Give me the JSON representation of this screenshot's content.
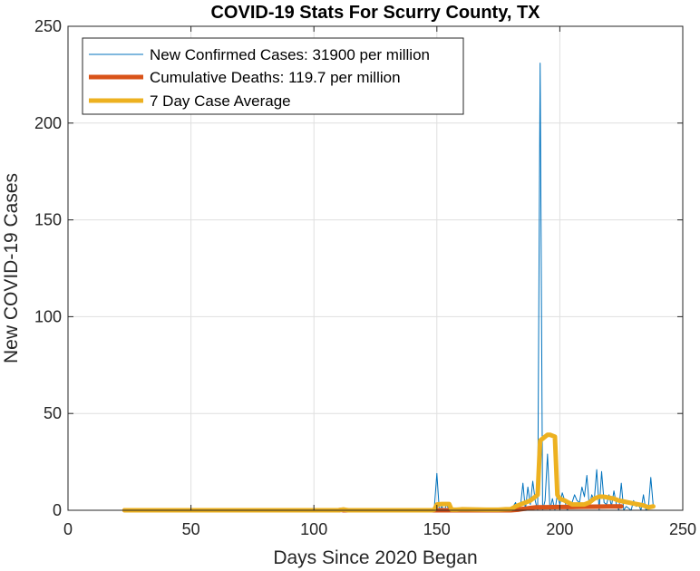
{
  "chart_data": {
    "type": "line",
    "title": "COVID-19 Stats For Scurry County, TX",
    "xlabel": "Days Since 2020 Began",
    "ylabel": "New COVID-19 Cases",
    "xlim": [
      0,
      250
    ],
    "ylim": [
      0,
      250
    ],
    "xticks": [
      0,
      50,
      100,
      150,
      200,
      250
    ],
    "yticks": [
      0,
      50,
      100,
      150,
      200,
      250
    ],
    "grid": true,
    "legend_position": "top-left",
    "series": [
      {
        "name": "New Confirmed Cases: 31900 per million",
        "color": "#0072bd",
        "x": [
          23,
          100,
          110,
          111,
          112,
          113,
          148,
          149,
          150,
          151,
          152,
          153,
          154,
          155,
          156,
          158,
          160,
          165,
          170,
          175,
          180,
          182,
          183,
          184,
          185,
          186,
          187,
          188,
          189,
          190,
          191,
          192,
          193,
          194,
          195,
          196,
          197,
          198,
          199,
          200,
          201,
          202,
          203,
          204,
          205,
          206,
          207,
          208,
          209,
          210,
          211,
          212,
          213,
          214,
          215,
          216,
          217,
          218,
          219,
          220,
          221,
          222,
          223,
          224,
          225,
          226,
          227,
          228,
          229,
          230,
          231,
          232,
          233,
          234,
          235,
          236,
          237,
          238
        ],
        "y": [
          0,
          0,
          0,
          1,
          0,
          0,
          0,
          2,
          19,
          0,
          2,
          0,
          3,
          0,
          0,
          0,
          0,
          0,
          0,
          0,
          0,
          4,
          0,
          2,
          14,
          0,
          12,
          3,
          15,
          5,
          0,
          231,
          0,
          5,
          29,
          0,
          6,
          0,
          8,
          3,
          9,
          5,
          0,
          2,
          4,
          8,
          5,
          4,
          12,
          7,
          18,
          2,
          8,
          5,
          21,
          0,
          20,
          4,
          3,
          8,
          2,
          10,
          3,
          0,
          14,
          0,
          2,
          1,
          0,
          5,
          2,
          3,
          0,
          8,
          0,
          1,
          17,
          2
        ]
      },
      {
        "name": "Cumulative Deaths: 119.7 per million",
        "color": "#d95319",
        "x": [
          23,
          110,
          111,
          112,
          150,
          180,
          183,
          184,
          185,
          186,
          187,
          188,
          190,
          195,
          200,
          205,
          210,
          215,
          220,
          225
        ],
        "y": [
          0,
          0,
          0.2,
          0,
          0,
          0,
          0.3,
          0.5,
          0.7,
          0.8,
          1.0,
          1.2,
          1.5,
          1.6,
          1.7,
          1.7,
          1.8,
          1.9,
          2.0,
          2.0
        ]
      },
      {
        "name": "7 Day Case Average",
        "color": "#edb120",
        "x": [
          23,
          110,
          112,
          114,
          148,
          149,
          150,
          152,
          155,
          156,
          157,
          158,
          160,
          165,
          170,
          175,
          178,
          180,
          181,
          182,
          184,
          186,
          188,
          190,
          191,
          192,
          193,
          195,
          196,
          198,
          199,
          200,
          202,
          205,
          208,
          210,
          212,
          214,
          216,
          218,
          220,
          222,
          224,
          226,
          228,
          230,
          232,
          234,
          236,
          238
        ],
        "y": [
          0,
          0,
          0.4,
          0,
          0,
          0.3,
          3,
          3.2,
          3.2,
          0.3,
          0.3,
          0.3,
          0.5,
          0.4,
          0.3,
          0.3,
          0.5,
          0.6,
          1.2,
          2,
          3,
          4,
          5,
          7,
          8,
          36,
          37,
          39,
          39,
          38,
          8,
          6,
          5,
          3,
          3,
          3,
          4,
          6,
          7,
          7,
          6.5,
          6,
          5,
          4.5,
          4,
          3.5,
          3,
          2.5,
          1.5,
          2
        ]
      }
    ]
  }
}
